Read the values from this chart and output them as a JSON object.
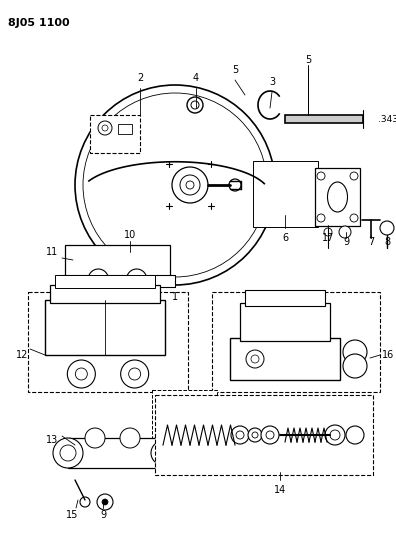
{
  "title": "8J05 1100",
  "bg_color": "#ffffff",
  "fig_width": 3.96,
  "fig_height": 5.33,
  "dpi": 100,
  "measurement_text": ".343\""
}
